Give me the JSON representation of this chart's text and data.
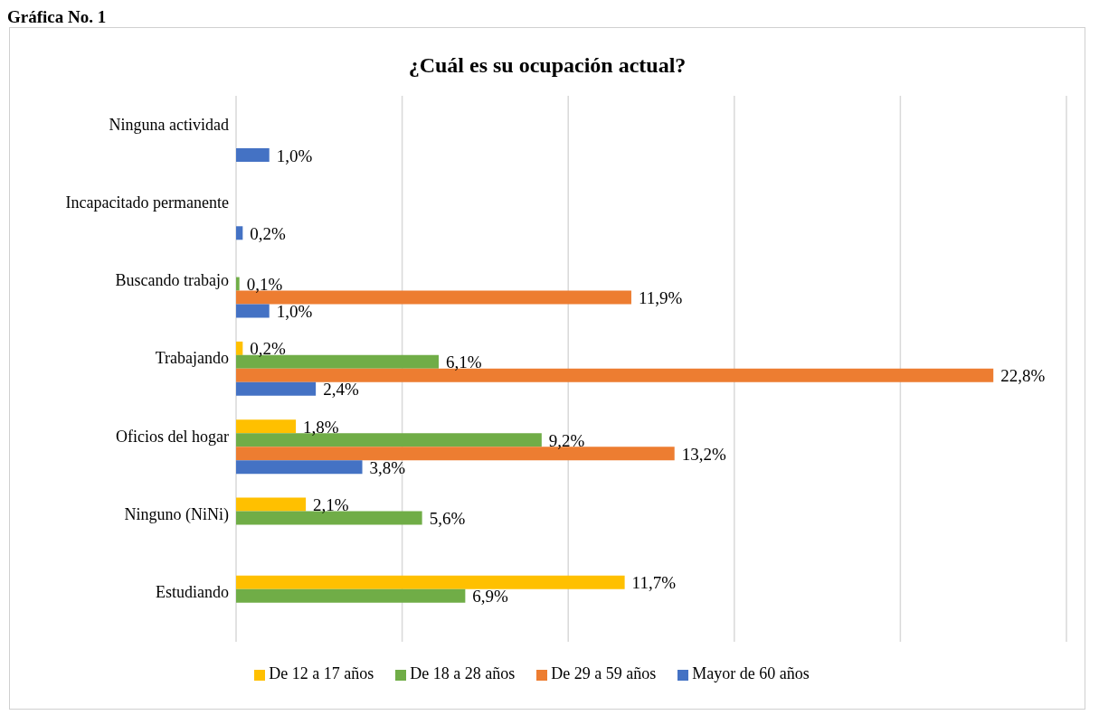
{
  "chart_data": {
    "type": "bar",
    "orientation": "horizontal",
    "title": "¿Cuál es su ocupación actual?",
    "annotations": [
      "Gráfica No. 1"
    ],
    "categories": [
      "Ninguna actividad",
      "Incapacitado permanente",
      "Buscando trabajo",
      "Trabajando",
      "Oficios del hogar",
      "Ninguno (NiNi)",
      "Estudiando"
    ],
    "series": [
      {
        "name": "De 12 a 17 años",
        "color": "#ffc000",
        "values": [
          null,
          null,
          null,
          0.2,
          1.8,
          2.1,
          11.7
        ],
        "value_labels": [
          null,
          null,
          null,
          "0,2%",
          "1,8%",
          "2,1%",
          "11,7%"
        ]
      },
      {
        "name": "De 18 a 28 años",
        "color": "#70ad47",
        "values": [
          null,
          null,
          0.1,
          6.1,
          9.2,
          5.6,
          6.9
        ],
        "value_labels": [
          null,
          null,
          "0,1%",
          "6,1%",
          "9,2%",
          "5,6%",
          "6,9%"
        ]
      },
      {
        "name": "De 29 a 59 años",
        "color": "#ed7d31",
        "values": [
          null,
          null,
          11.9,
          22.8,
          13.2,
          null,
          null
        ],
        "value_labels": [
          null,
          null,
          "11,9%",
          "22,8%",
          "13,2%",
          null,
          null
        ]
      },
      {
        "name": "Mayor de 60 años",
        "color": "#4472c4",
        "values": [
          1.0,
          0.2,
          1.0,
          2.4,
          3.8,
          null,
          null
        ],
        "value_labels": [
          "1,0%",
          "0,2%",
          "1,0%",
          "2,4%",
          "3,8%",
          null,
          null
        ]
      }
    ],
    "xlim": [
      0,
      25
    ],
    "tick_labels": "y",
    "grid": "x",
    "legend": "bottom"
  }
}
